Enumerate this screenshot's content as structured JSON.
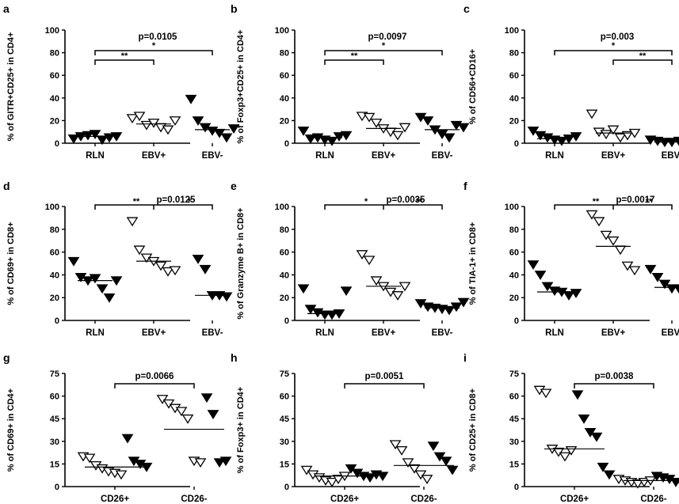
{
  "chart_data": [
    {
      "panel": "a",
      "type": "scatter",
      "ylabel": "% of GITR+CD25+ in CD4+",
      "ylim": [
        0,
        100
      ],
      "yticks": [
        "0",
        "20",
        "40",
        "60",
        "80",
        "100"
      ],
      "categories": [
        "RLN",
        "EBV+",
        "EBV-"
      ],
      "marker": [
        "filled",
        "open",
        "filled"
      ],
      "values": [
        [
          4,
          6,
          7,
          8,
          3,
          5,
          6
        ],
        [
          22,
          24,
          16,
          18,
          14,
          12,
          20
        ],
        [
          39,
          20,
          14,
          11,
          9,
          5,
          13
        ]
      ],
      "medians": [
        6,
        17,
        12
      ],
      "annotations": [
        {
          "text": "p=0.0105",
          "role": "pvalue"
        },
        {
          "from": 0,
          "to": 2,
          "text": "*"
        },
        {
          "from": 0,
          "to": 1,
          "text": "**"
        }
      ]
    },
    {
      "panel": "b",
      "type": "scatter",
      "ylabel": "% of Foxp3+CD25+ in CD4+",
      "ylim": [
        0,
        100
      ],
      "yticks": [
        "0",
        "20",
        "40",
        "60",
        "80",
        "100"
      ],
      "categories": [
        "RLN",
        "EBV+",
        "EBV-"
      ],
      "marker": [
        "filled",
        "open",
        "filled"
      ],
      "values": [
        [
          11,
          4,
          5,
          3,
          2,
          6,
          7
        ],
        [
          24,
          23,
          18,
          13,
          10,
          7,
          14
        ],
        [
          23,
          20,
          12,
          8,
          5,
          16,
          14
        ]
      ],
      "medians": [
        5,
        13,
        12
      ],
      "annotations": [
        {
          "text": "p=0.0097",
          "role": "pvalue"
        },
        {
          "from": 0,
          "to": 2,
          "text": "*"
        },
        {
          "from": 0,
          "to": 1,
          "text": "**"
        }
      ]
    },
    {
      "panel": "c",
      "type": "scatter",
      "ylabel": "% of CD56+CD16+",
      "ylim": [
        0,
        100
      ],
      "yticks": [
        "0",
        "20",
        "40",
        "60",
        "80",
        "100"
      ],
      "categories": [
        "RLN",
        "EBV+",
        "EBV-"
      ],
      "marker": [
        "filled",
        "open",
        "filled"
      ],
      "values": [
        [
          11,
          7,
          5,
          3,
          2,
          4,
          6
        ],
        [
          26,
          10,
          8,
          12,
          5,
          7,
          9
        ],
        [
          3,
          2,
          1,
          1,
          2,
          1,
          2
        ]
      ],
      "medians": [
        4,
        9,
        1
      ],
      "annotations": [
        {
          "text": "p=0.003",
          "role": "pvalue"
        },
        {
          "from": 0,
          "to": 2,
          "text": "*"
        },
        {
          "from": 1,
          "to": 2,
          "text": "**"
        }
      ]
    },
    {
      "panel": "d",
      "type": "scatter",
      "ylabel": "% of CD69+ in CD8+",
      "ylim": [
        0,
        100
      ],
      "yticks": [
        "0",
        "20",
        "40",
        "60",
        "80",
        "100"
      ],
      "categories": [
        "RLN",
        "EBV+",
        "EBV-"
      ],
      "marker": [
        "filled",
        "open",
        "filled"
      ],
      "values": [
        [
          52,
          38,
          35,
          37,
          28,
          20,
          35
        ],
        [
          87,
          62,
          55,
          52,
          48,
          43,
          44
        ],
        [
          54,
          45,
          22,
          22,
          21
        ]
      ],
      "medians": [
        35,
        52,
        22
      ],
      "annotations": [
        {
          "from": 0,
          "to": 2,
          "text": "p=0.0125",
          "role": "pvalue"
        },
        {
          "text": "**",
          "side": "left"
        },
        {
          "text": "*",
          "side": "right"
        }
      ]
    },
    {
      "panel": "e",
      "type": "scatter",
      "ylabel": "% of Granzyme B+ in CD8+",
      "ylim": [
        0,
        100
      ],
      "yticks": [
        "0",
        "20",
        "40",
        "60",
        "80",
        "100"
      ],
      "categories": [
        "RLN",
        "EBV+",
        "EBV-"
      ],
      "marker": [
        "filled",
        "open",
        "filled"
      ],
      "values": [
        [
          28,
          10,
          7,
          5,
          5,
          6,
          26
        ],
        [
          58,
          53,
          35,
          30,
          25,
          22,
          30
        ],
        [
          15,
          12,
          11,
          10,
          9,
          12,
          16
        ]
      ],
      "medians": [
        6,
        30,
        11
      ],
      "annotations": [
        {
          "from": 0,
          "to": 2,
          "text": "p=0.0035",
          "role": "pvalue"
        },
        {
          "text": "*",
          "side": "left"
        },
        {
          "text": "**",
          "side": "right"
        }
      ]
    },
    {
      "panel": "f",
      "type": "scatter",
      "ylabel": "% of TIA-1+ in CD8+",
      "ylim": [
        0,
        100
      ],
      "yticks": [
        "0",
        "20",
        "40",
        "60",
        "80",
        "100"
      ],
      "categories": [
        "RLN",
        "EBV+",
        "EBV-"
      ],
      "marker": [
        "filled",
        "open",
        "filled"
      ],
      "values": [
        [
          49,
          40,
          30,
          26,
          25,
          22,
          24
        ],
        [
          93,
          87,
          75,
          70,
          62,
          48,
          44
        ],
        [
          45,
          38,
          32,
          28,
          28,
          29,
          30
        ]
      ],
      "medians": [
        25,
        65,
        29
      ],
      "annotations": [
        {
          "from": 0,
          "to": 2,
          "text": "p=0.0017",
          "role": "pvalue"
        },
        {
          "text": "**",
          "side": "left"
        },
        {
          "text": "**",
          "side": "right"
        }
      ]
    },
    {
      "panel": "g",
      "type": "scatter",
      "ylabel": "% of CD69+ in CD4+",
      "ylim": [
        0,
        75
      ],
      "yticks": [
        "0",
        "15",
        "30",
        "45",
        "60",
        "75"
      ],
      "categories": [
        "CD26+",
        "CD26-"
      ],
      "values_open": [
        [
          20,
          19,
          14,
          12,
          10,
          9,
          8
        ],
        [
          58,
          55,
          52,
          50,
          45,
          17,
          16
        ]
      ],
      "values_filled": [
        [
          32,
          17,
          15,
          13
        ],
        [
          59,
          48,
          16,
          17
        ]
      ],
      "medians": [
        13,
        38
      ],
      "annotations": [
        {
          "from": 0,
          "to": 1,
          "text": "p=0.0066",
          "role": "pvalue"
        }
      ]
    },
    {
      "panel": "h",
      "type": "scatter",
      "ylabel": "% of Foxp3+ in CD4+",
      "ylim": [
        0,
        75
      ],
      "yticks": [
        "0",
        "15",
        "30",
        "45",
        "60",
        "75"
      ],
      "categories": [
        "CD26+",
        "CD26-"
      ],
      "values_open": [
        [
          11,
          8,
          6,
          4,
          3,
          5,
          7
        ],
        [
          28,
          24,
          16,
          12,
          8,
          5
        ]
      ],
      "values_filled": [
        [
          12,
          9,
          7,
          6,
          8,
          7
        ],
        [
          27,
          20,
          17,
          11
        ]
      ],
      "medians": [
        7,
        14
      ],
      "annotations": [
        {
          "from": 0,
          "to": 1,
          "text": "p=0.0051",
          "role": "pvalue"
        }
      ]
    },
    {
      "panel": "i",
      "type": "scatter",
      "ylabel": "% of CD25+ in CD8+",
      "ylim": [
        0,
        75
      ],
      "yticks": [
        "0",
        "15",
        "30",
        "45",
        "60",
        "75"
      ],
      "categories": [
        "CD26+",
        "CD26-"
      ],
      "values_open": [
        [
          64,
          62,
          25,
          23,
          20,
          24
        ],
        [
          5,
          4,
          3,
          2,
          3,
          4
        ]
      ],
      "values_filled": [
        [
          61,
          45,
          36,
          33,
          13,
          8
        ],
        [
          7,
          6,
          5,
          3,
          2,
          4
        ]
      ],
      "medians": [
        25,
        4
      ],
      "annotations": [
        {
          "from": 0,
          "to": 1,
          "text": "p=0.0038",
          "role": "pvalue"
        }
      ]
    }
  ]
}
